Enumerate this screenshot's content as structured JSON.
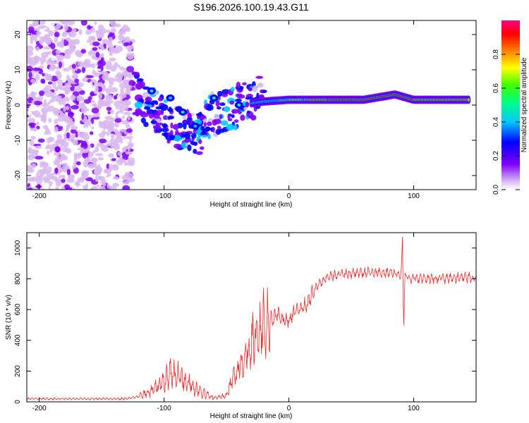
{
  "title": "S196.2026.100.19.43.G11",
  "chart_data": [
    {
      "type": "heatmap",
      "xlabel": "Height of straight line (km)",
      "ylabel": "Frequency (Hz)",
      "xlim": [
        -210,
        150
      ],
      "ylim": [
        -24,
        24
      ],
      "xticks": [
        -200,
        -100,
        0,
        100
      ],
      "yticks": [
        -20,
        -10,
        0,
        10,
        20
      ],
      "colorbar": {
        "label": "Normalized spectral amplitude",
        "range": [
          0,
          1
        ],
        "ticks": [
          "0.0",
          "0.2",
          "0.4",
          "0.6",
          "0.8"
        ],
        "colors": [
          "#ffffff",
          "#d8b8f0",
          "#8000ff",
          "#0000ff",
          "#00c8ff",
          "#00ff80",
          "#40ff00",
          "#ffff00",
          "#ff8000",
          "#ff0000",
          "#ff0080"
        ]
      },
      "ridge": [
        {
          "x": -110,
          "y": 4,
          "amp": 0.45
        },
        {
          "x": -95,
          "y": 2,
          "amp": 0.4
        },
        {
          "x": -85,
          "y": -2,
          "amp": 0.45
        },
        {
          "x": -75,
          "y": -6,
          "amp": 0.4
        },
        {
          "x": -60,
          "y": 2,
          "amp": 0.45
        },
        {
          "x": -40,
          "y": 0,
          "amp": 0.5
        },
        {
          "x": -20,
          "y": 1,
          "amp": 0.55
        },
        {
          "x": 0,
          "y": 1.5,
          "amp": 0.7
        },
        {
          "x": 20,
          "y": 1.5,
          "amp": 0.8
        },
        {
          "x": 40,
          "y": 1.5,
          "amp": 0.9
        },
        {
          "x": 60,
          "y": 1.5,
          "amp": 0.9
        },
        {
          "x": 85,
          "y": 3,
          "amp": 0.9
        },
        {
          "x": 100,
          "y": 1.5,
          "amp": 0.85
        },
        {
          "x": 120,
          "y": 1.5,
          "amp": 0.8
        },
        {
          "x": 145,
          "y": 1.5,
          "amp": 0.85
        }
      ]
    },
    {
      "type": "line",
      "xlabel": "Height of straight line (km)",
      "ylabel": "SNR (10 * v/v)",
      "xlim": [
        -210,
        150
      ],
      "ylim": [
        0,
        1100
      ],
      "xticks": [
        -200,
        -100,
        0,
        100
      ],
      "yticks": [
        0,
        200,
        400,
        600,
        800,
        1000
      ],
      "color": "#ee2a2a",
      "series": [
        {
          "name": "SNR",
          "x": [
            -210,
            -130,
            -120,
            -110,
            -100,
            -95,
            -90,
            -80,
            -70,
            -60,
            -50,
            -45,
            -40,
            -35,
            -30,
            -25,
            -20,
            -18,
            -15,
            -10,
            -5,
            0,
            5,
            10,
            15,
            20,
            25,
            30,
            40,
            60,
            80,
            90,
            91,
            92,
            93,
            100,
            120,
            150
          ],
          "y": [
            20,
            20,
            35,
            70,
            130,
            190,
            170,
            120,
            60,
            25,
            40,
            150,
            230,
            310,
            380,
            450,
            500,
            520,
            540,
            560,
            540,
            530,
            580,
            610,
            640,
            720,
            780,
            810,
            830,
            840,
            840,
            830,
            1060,
            500,
            820,
            800,
            800,
            810
          ]
        }
      ]
    }
  ]
}
